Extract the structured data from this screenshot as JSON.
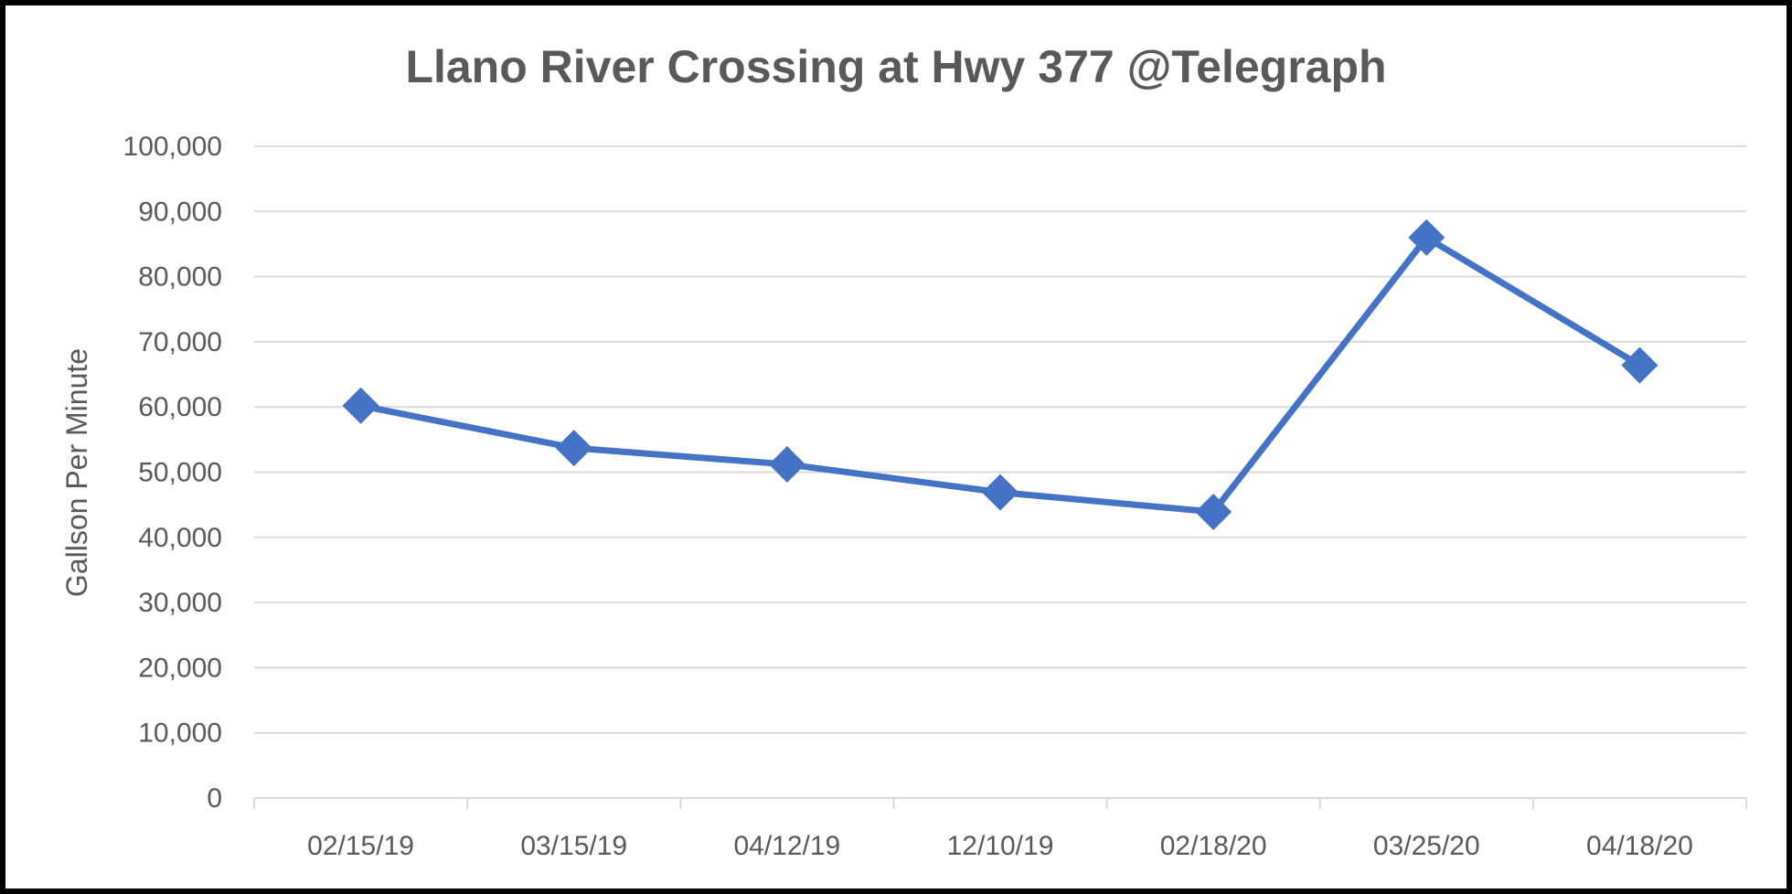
{
  "chart_data": {
    "type": "line",
    "title": "Llano River Crossing at Hwy 377 @Telegraph",
    "ylabel": "Gallson Per Minute",
    "xlabel": "",
    "categories": [
      "02/15/19",
      "03/15/19",
      "04/12/19",
      "12/10/19",
      "02/18/20",
      "03/25/20",
      "04/18/20"
    ],
    "series": [
      {
        "values": [
          60200,
          53700,
          51200,
          46900,
          43900,
          86000,
          66400
        ]
      }
    ],
    "ylim": [
      0,
      100000
    ],
    "yticks": [
      "0",
      "10,000",
      "20,000",
      "30,000",
      "40,000",
      "50,000",
      "60,000",
      "70,000",
      "80,000",
      "90,000",
      "100,000"
    ],
    "grid": true,
    "colors": {
      "series": "#4472C4",
      "grid": "#D9D9D9",
      "text": "#595959"
    },
    "marker": "diamond"
  }
}
